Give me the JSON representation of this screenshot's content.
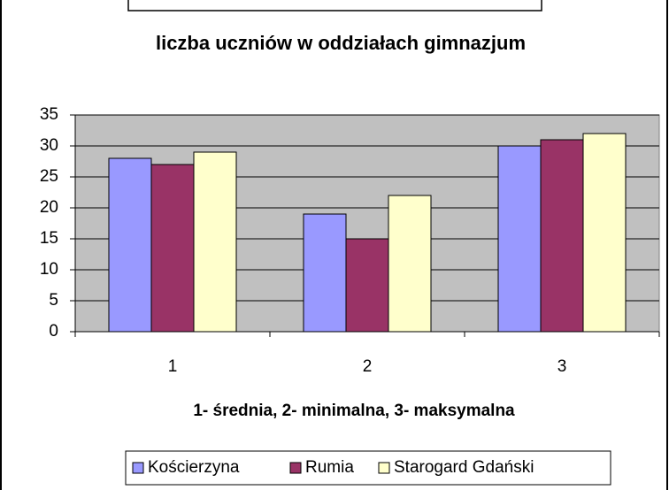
{
  "chart_data": {
    "type": "bar",
    "title": "liczba uczniów w oddziałach gimnazjum",
    "x_label": "1- średnia, 2- minimalna, 3- maksymalna",
    "categories": [
      "1",
      "2",
      "3"
    ],
    "series": [
      {
        "name": "Kościerzyna",
        "color": "#9999ff",
        "values": [
          28,
          19,
          30
        ]
      },
      {
        "name": "Rumia",
        "color": "#993366",
        "values": [
          27,
          15,
          31
        ]
      },
      {
        "name": "Starogard Gdański",
        "color": "#ffffcc",
        "values": [
          29,
          22,
          32
        ]
      }
    ],
    "ylim": [
      0,
      35
    ],
    "yticks": [
      0,
      5,
      10,
      15,
      20,
      25,
      30,
      35
    ],
    "grid": true,
    "legend": "bottom"
  }
}
